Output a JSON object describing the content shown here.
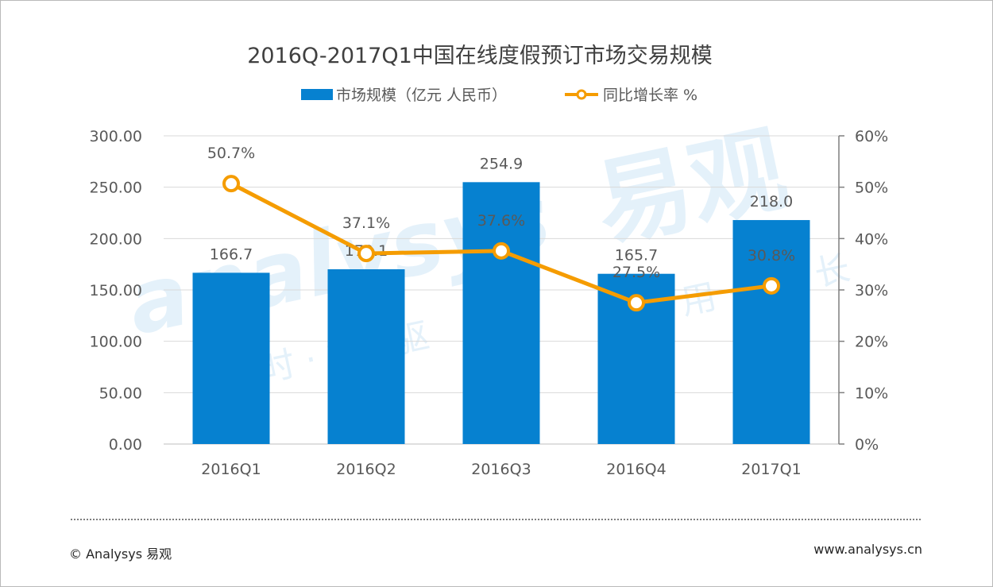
{
  "footer": {
    "copyright": "© Analysys 易观",
    "website": "www.analysys.cn"
  },
  "watermark": {
    "brand": "易观",
    "latin": "analysys",
    "slogan_left": "时 · 析 · 驱",
    "slogan_right": "用 · 数 · 长"
  },
  "chart_data": {
    "type": "bar",
    "title": "2016Q-2017Q1中国在线度假预订市场交易规模",
    "categories": [
      "2016Q1",
      "2016Q2",
      "2016Q3",
      "2016Q4",
      "2017Q1"
    ],
    "series": [
      {
        "name": "市场规模（亿元 人民币）",
        "type": "bar",
        "axis": "left",
        "values": [
          166.7,
          170.1,
          254.9,
          165.7,
          218.0
        ],
        "labels": [
          "166.7",
          "170.1",
          "254.9",
          "165.7",
          "218.0"
        ],
        "color": "#0681d0"
      },
      {
        "name": "同比增长率 %",
        "type": "line",
        "axis": "right",
        "values": [
          50.7,
          37.1,
          37.6,
          27.5,
          30.8
        ],
        "labels": [
          "50.7%",
          "37.1%",
          "37.6%",
          "27.5%",
          "30.8%"
        ],
        "color": "#f59c00"
      }
    ],
    "y_left": {
      "range": [
        0,
        300
      ],
      "ticks": [
        0,
        50,
        100,
        150,
        200,
        250,
        300
      ],
      "tick_labels": [
        "0.00",
        "50.00",
        "100.00",
        "150.00",
        "200.00",
        "250.00",
        "300.00"
      ]
    },
    "y_right": {
      "range": [
        0,
        60
      ],
      "ticks": [
        0,
        10,
        20,
        30,
        40,
        50,
        60
      ],
      "tick_labels": [
        "0%",
        "10%",
        "20%",
        "30%",
        "40%",
        "50%",
        "60%"
      ]
    },
    "grid": true,
    "legend": "top-center"
  }
}
